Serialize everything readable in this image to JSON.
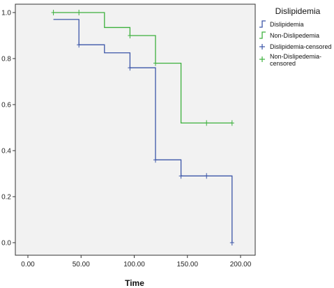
{
  "chart_data": {
    "type": "line",
    "subtype": "kaplan-meier step",
    "xlabel": "Time",
    "ylabel": "",
    "xlim": [
      0,
      200
    ],
    "ylim": [
      0,
      1.0
    ],
    "x_ticks": [
      "0.00",
      "50.00",
      "100.00",
      "150.00",
      "200.00"
    ],
    "y_ticks": [
      "0.0",
      "0.2",
      "0.4",
      "0.6",
      "0.8",
      "1.0"
    ],
    "grid": false,
    "legend_title": "Dislipidemia",
    "legend_position": "top-right",
    "legend": [
      {
        "label": "Dislipidemia",
        "kind": "step",
        "color": "#3b55a8"
      },
      {
        "label": "Non-Dislipedemia",
        "kind": "step",
        "color": "#3cb03c"
      },
      {
        "label": "Dislipidemia-censored",
        "kind": "censor",
        "color": "#3b55a8"
      },
      {
        "label": "Non-Dislipedemia-censored",
        "label_lines": [
          "Non-Dislipedemia-",
          "censored"
        ],
        "kind": "censor",
        "color": "#3cb03c"
      }
    ],
    "series": [
      {
        "name": "Dislipidemia",
        "color": "#3b55a8",
        "steps": [
          [
            24,
            0.97
          ],
          [
            48,
            0.86
          ],
          [
            72,
            0.825
          ],
          [
            96,
            0.76
          ],
          [
            120,
            0.36
          ],
          [
            144,
            0.29
          ],
          [
            192,
            0.29
          ],
          [
            192,
            0.0
          ]
        ],
        "censored": [
          [
            48,
            0.86
          ],
          [
            96,
            0.76
          ],
          [
            120,
            0.36
          ],
          [
            144,
            0.29
          ],
          [
            168,
            0.29
          ],
          [
            192,
            0.0
          ]
        ]
      },
      {
        "name": "Non-Dislipedemia",
        "color": "#3cb03c",
        "steps": [
          [
            24,
            1.0
          ],
          [
            72,
            0.935
          ],
          [
            96,
            0.9
          ],
          [
            120,
            0.78
          ],
          [
            144,
            0.52
          ],
          [
            192,
            0.52
          ]
        ],
        "censored": [
          [
            24,
            1.0
          ],
          [
            48,
            1.0
          ],
          [
            96,
            0.9
          ],
          [
            120,
            0.78
          ],
          [
            168,
            0.52
          ],
          [
            192,
            0.52
          ]
        ]
      }
    ]
  }
}
